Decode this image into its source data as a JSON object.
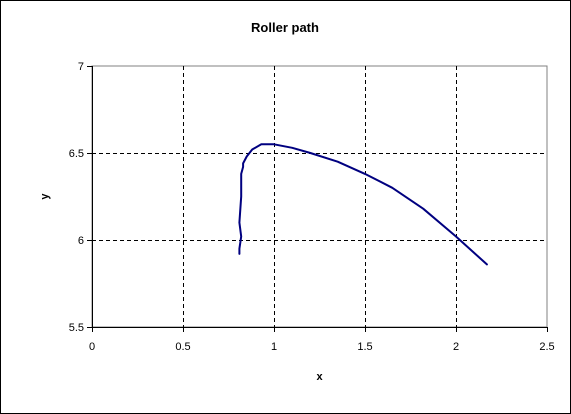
{
  "chart_data": {
    "type": "line",
    "title": "Roller path",
    "xlabel": "x",
    "ylabel": "y",
    "xlim": [
      0,
      2.5
    ],
    "ylim": [
      5.5,
      7
    ],
    "x_ticks": [
      "0",
      "0.5",
      "1",
      "1.5",
      "2",
      "2.5"
    ],
    "y_ticks": [
      "5.5",
      "6",
      "6.5",
      "7"
    ],
    "grid": true,
    "legend": "none",
    "colors": {
      "line": "#000080",
      "grid": "#000000",
      "plot_background": "#ffffff"
    },
    "series": [
      {
        "x": [
          0.81,
          0.81,
          0.82,
          0.81,
          0.82,
          0.82,
          0.83,
          0.83,
          0.85,
          0.88,
          0.93,
          1.0,
          1.1,
          1.2,
          1.35,
          1.5,
          1.65,
          1.82,
          2.0,
          2.17
        ],
        "y": [
          5.92,
          5.95,
          6.02,
          6.1,
          6.25,
          6.38,
          6.42,
          6.44,
          6.48,
          6.52,
          6.55,
          6.55,
          6.53,
          6.5,
          6.45,
          6.38,
          6.3,
          6.18,
          6.02,
          5.86
        ]
      }
    ]
  }
}
